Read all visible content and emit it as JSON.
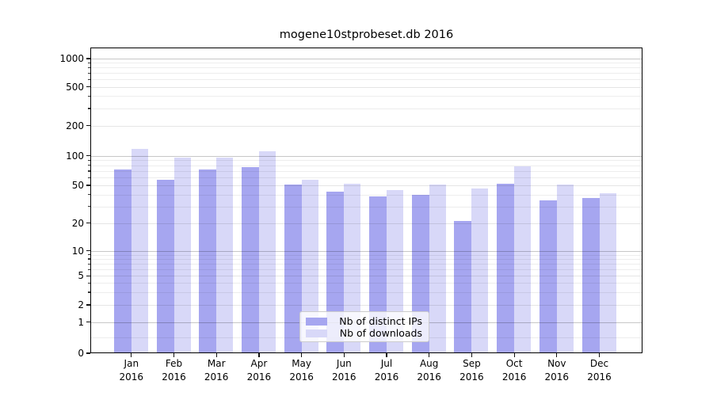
{
  "figure": {
    "title": "mogene10stprobeset.db 2016"
  },
  "chart_data": {
    "type": "bar",
    "title": "mogene10stprobeset.db 2016",
    "categories": [
      "Jan 2016",
      "Feb 2016",
      "Mar 2016",
      "Apr 2016",
      "May 2016",
      "Jun 2016",
      "Jul 2016",
      "Aug 2016",
      "Sep 2016",
      "Oct 2016",
      "Nov 2016",
      "Dec 2016"
    ],
    "series": [
      {
        "name": "Nb of distinct IPs",
        "color": "#a6a6f0",
        "values": [
          72,
          57,
          72,
          76,
          51,
          43,
          38,
          40,
          21,
          52,
          35,
          37
        ]
      },
      {
        "name": "Nb of downloads",
        "color": "#d8d8f8",
        "values": [
          116,
          96,
          96,
          111,
          57,
          52,
          45,
          51,
          46,
          78,
          51,
          41
        ]
      }
    ],
    "xlabel": "",
    "ylabel": "",
    "yscale": "asinh (log above 1, linear between 0 and 1)",
    "y_ticks": [
      0,
      1,
      2,
      5,
      10,
      20,
      50,
      100,
      200,
      500,
      1000
    ],
    "ylim": [
      0,
      1300
    ],
    "grid": "horizontal gridlines at major and minor ticks, drawn over bars",
    "legend_position": "lower center inside plot"
  },
  "legend": {
    "items": [
      {
        "label": "Nb of distinct IPs",
        "color": "#a6a6f0"
      },
      {
        "label": "Nb of downloads",
        "color": "#d8d8f8"
      }
    ]
  },
  "colors": {
    "background": "#ffffff",
    "bar_distinct_ips": "#a6a6f0",
    "bar_downloads": "#d8d8f8",
    "spine": "#000000",
    "grid_major": "#c9c9c9",
    "grid_minor": "#ebebeb"
  }
}
